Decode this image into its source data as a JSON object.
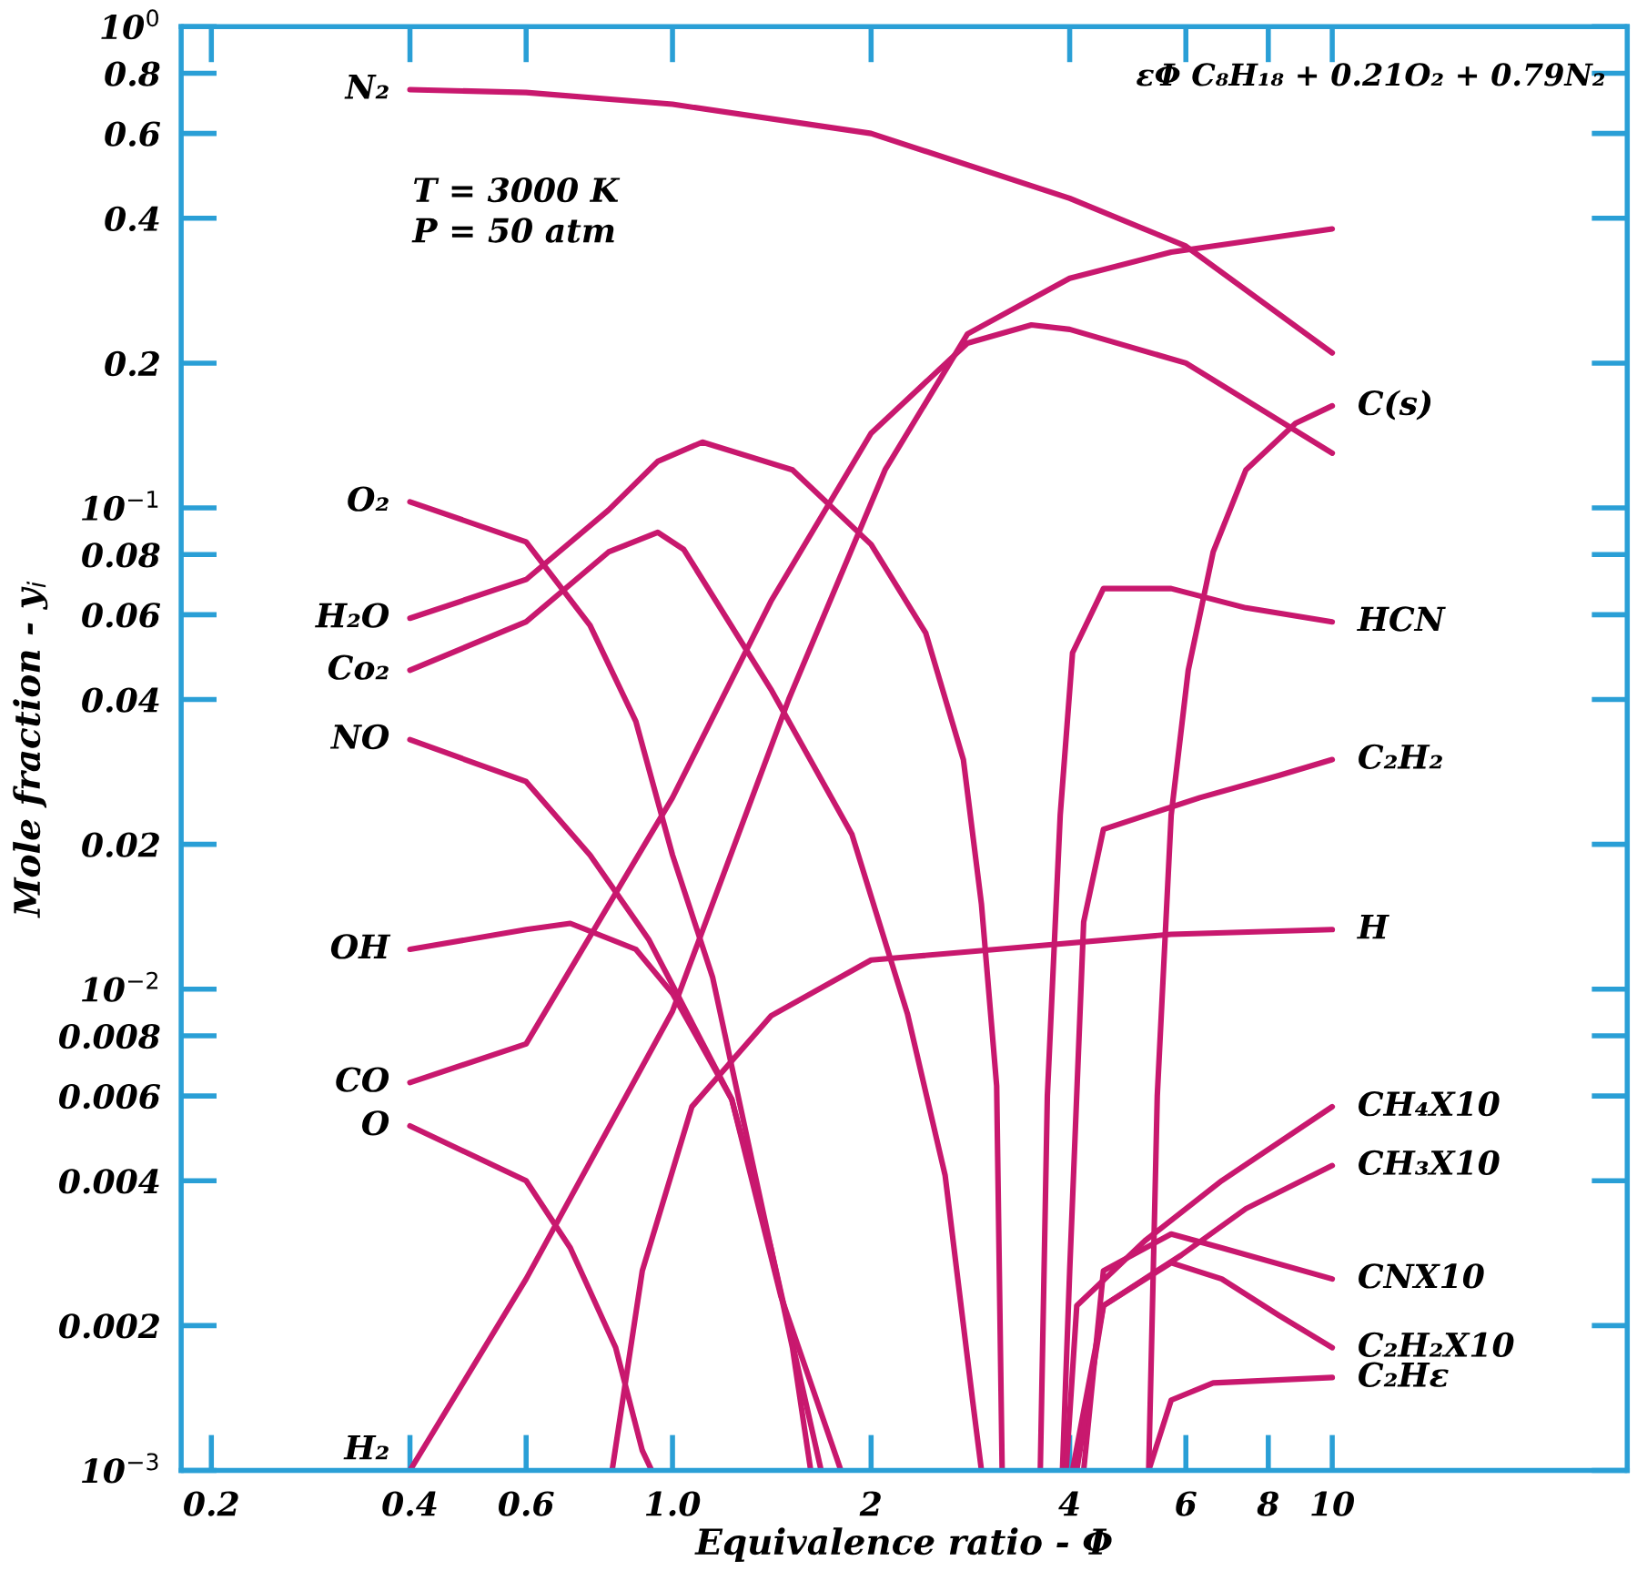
{
  "chart_data": {
    "type": "line",
    "title": "εΦ C₈H₁₈ + 0.21O₂ + 0.79N₂",
    "xlabel": "Equivalence ratio - Φ",
    "ylabel": "Mole fraction - y$_{i}$",
    "log": "xy",
    "annotations": [
      "T = 3000 K",
      "P = 50 atm"
    ],
    "xlim": [
      0.18,
      28
    ],
    "ylim": [
      0.001,
      1
    ],
    "xticks": [
      0.2,
      0.4,
      0.6,
      {
        "value": 1,
        "label": "1.0"
      },
      2,
      4,
      6,
      8,
      10
    ],
    "yticks": [
      {
        "value": 0.001,
        "label": "10$^{−3}$"
      },
      0.002,
      0.004,
      0.006,
      0.008,
      {
        "value": 0.01,
        "label": "10$^{−2}$"
      },
      0.02,
      0.04,
      0.06,
      0.08,
      {
        "value": 0.1,
        "label": "10$^{−1}$"
      },
      0.2,
      0.4,
      0.6,
      0.8,
      {
        "value": 1,
        "label": "10$^{0}$"
      }
    ],
    "series": [
      {
        "name": "N₂",
        "color": "#c8186e",
        "x": [
          0.4,
          0.6,
          1.0,
          2,
          4,
          6,
          10
        ],
        "values": [
          0.74,
          0.73,
          0.69,
          0.6,
          0.44,
          0.35,
          0.21
        ]
      },
      {
        "name": "O₂",
        "color": "#c8186e",
        "x": [
          0.4,
          0.6,
          0.75,
          0.88,
          1.0,
          1.15,
          1.32,
          1.52,
          1.62
        ],
        "values": [
          0.103,
          0.085,
          0.057,
          0.036,
          0.019,
          0.0106,
          0.0044,
          0.0018,
          0.001
        ]
      },
      {
        "name": "H₂O",
        "color": "#c8186e",
        "x": [
          0.4,
          0.6,
          0.8,
          0.95,
          1.11,
          1.52,
          2,
          2.42,
          2.76,
          2.94,
          3.1,
          3.16
        ],
        "values": [
          0.059,
          0.071,
          0.099,
          0.125,
          0.137,
          0.12,
          0.084,
          0.055,
          0.03,
          0.015,
          0.0063,
          0.001
        ]
      },
      {
        "name": "Co₂",
        "color": "#c8186e",
        "x": [
          0.4,
          0.6,
          0.8,
          0.95,
          1.04,
          1.41,
          1.87,
          2.27,
          2.59,
          2.85,
          2.94
        ],
        "values": [
          0.046,
          0.058,
          0.081,
          0.089,
          0.082,
          0.042,
          0.021,
          0.0089,
          0.0041,
          0.0014,
          0.001
        ]
      },
      {
        "name": "NO",
        "color": "#c8186e",
        "x": [
          0.4,
          0.6,
          0.75,
          0.92,
          1.0,
          1.23,
          1.41,
          1.68
        ],
        "values": [
          0.033,
          0.027,
          0.019,
          0.0127,
          0.0102,
          0.0059,
          0.0029,
          0.001
        ]
      },
      {
        "name": "OH",
        "color": "#c8186e",
        "x": [
          0.4,
          0.6,
          0.7,
          0.88,
          1.0,
          1.23,
          1.46,
          1.8
        ],
        "values": [
          0.0121,
          0.0133,
          0.0137,
          0.0121,
          0.0098,
          0.0059,
          0.0023,
          0.001
        ]
      },
      {
        "name": "CO",
        "color": "#c8186e",
        "x": [
          0.4,
          0.6,
          1.0,
          1.41,
          2,
          2.8,
          3.5,
          4,
          6,
          10
        ],
        "values": [
          0.0064,
          0.0077,
          0.025,
          0.064,
          0.143,
          0.22,
          0.24,
          0.235,
          0.2,
          0.13
        ]
      },
      {
        "name": "O",
        "color": "#c8186e",
        "x": [
          0.4,
          0.6,
          0.7,
          0.82,
          0.9,
          0.93
        ],
        "values": [
          0.0052,
          0.004,
          0.0029,
          0.0018,
          0.0011,
          0.001
        ]
      },
      {
        "name": "H₂",
        "color": "#c8186e",
        "x": [
          0.4,
          0.6,
          1.0,
          1.5,
          2.1,
          2.8,
          4,
          5.7,
          10
        ],
        "values": [
          0.001,
          0.0025,
          0.009,
          0.04,
          0.12,
          0.23,
          0.3,
          0.34,
          0.38
        ]
      },
      {
        "name": "C(s)",
        "color": "#c8186e",
        "x": [
          5.27,
          5.43,
          5.7,
          6.05,
          6.6,
          7.4,
          8.8,
          10
        ],
        "values": [
          0.001,
          0.006,
          0.023,
          0.046,
          0.081,
          0.12,
          0.15,
          0.163
        ]
      },
      {
        "name": "HCN",
        "color": "#c8186e",
        "x": [
          3.61,
          3.7,
          3.87,
          4.04,
          4.5,
          5.7,
          7.4,
          10
        ],
        "values": [
          0.001,
          0.006,
          0.023,
          0.05,
          0.068,
          0.068,
          0.062,
          0.058
        ]
      },
      {
        "name": "C₂H₂",
        "color": "#c8186e",
        "x": [
          3.9,
          4.0,
          4.2,
          4.5,
          6.3,
          8.3,
          10
        ],
        "values": [
          0.001,
          0.0026,
          0.0138,
          0.0215,
          0.025,
          0.0278,
          0.03
        ]
      },
      {
        "name": "H",
        "color": "#c8186e",
        "x": [
          0.81,
          0.9,
          1.07,
          1.41,
          2,
          3.1,
          5.7,
          10
        ],
        "values": [
          0.001,
          0.0026,
          0.0057,
          0.0088,
          0.0115,
          0.0121,
          0.013,
          0.0133
        ]
      },
      {
        "name": "CH₄X10",
        "color": "#c8186e",
        "x": [
          3.95,
          4.1,
          5.2,
          6.8,
          10
        ],
        "values": [
          0.001,
          0.0022,
          0.003,
          0.004,
          0.0057
        ]
      },
      {
        "name": "CH₃X10",
        "color": "#c8186e",
        "x": [
          4.04,
          4.5,
          5.9,
          7.4,
          10
        ],
        "values": [
          0.001,
          0.0022,
          0.0028,
          0.0035,
          0.0043
        ]
      },
      {
        "name": "CNX10",
        "color": "#c8186e",
        "x": [
          4.2,
          4.5,
          5.7,
          6.8,
          10
        ],
        "values": [
          0.001,
          0.0026,
          0.0031,
          0.0029,
          0.0025
        ]
      },
      {
        "name": "C₂H₂X10",
        "color": "#c8186e",
        "x": [
          4.1,
          4.5,
          5.7,
          6.8,
          8.3,
          10
        ],
        "values": [
          0.001,
          0.0022,
          0.0027,
          0.0025,
          0.0021,
          0.0018
        ]
      },
      {
        "name": "C₂Hε",
        "color": "#c8186e",
        "x": [
          5.27,
          5.7,
          6.6,
          10
        ],
        "values": [
          0.001,
          0.0014,
          0.00152,
          0.00156
        ]
      }
    ]
  }
}
